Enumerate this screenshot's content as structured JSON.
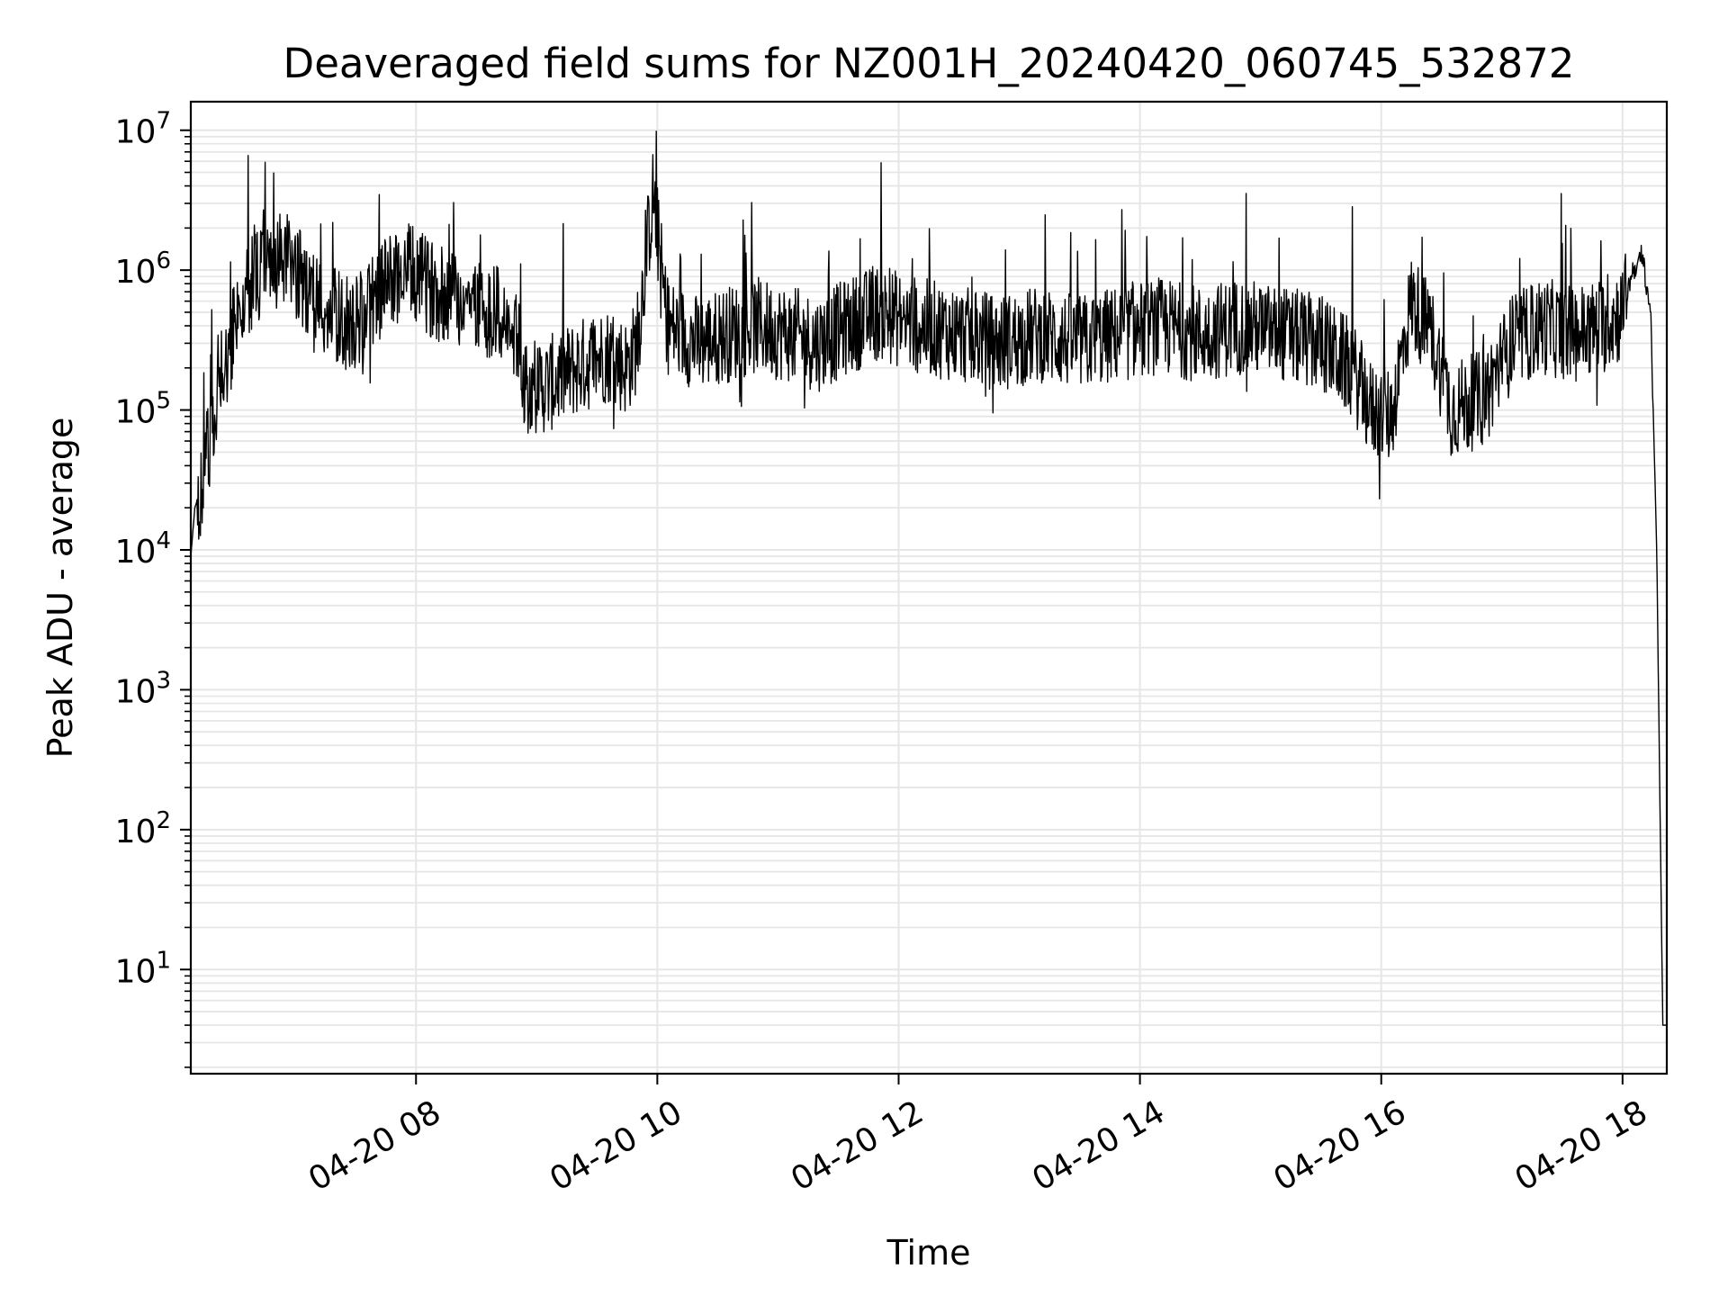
{
  "chart_data": {
    "type": "line",
    "title": "Deaveraged field sums for NZ001H_20240420_060745_532872",
    "xlabel": "Time",
    "ylabel": "Peak ADU - average",
    "x_scale": "time",
    "y_scale": "log",
    "xlim": [
      "2024-04-20 06:08",
      "2024-04-20 18:22"
    ],
    "ylim": [
      1.8,
      16000000
    ],
    "x_ticks": [
      {
        "value": "2024-04-20 08:00",
        "label": "04-20 08"
      },
      {
        "value": "2024-04-20 10:00",
        "label": "04-20 10"
      },
      {
        "value": "2024-04-20 12:00",
        "label": "04-20 12"
      },
      {
        "value": "2024-04-20 14:00",
        "label": "04-20 14"
      },
      {
        "value": "2024-04-20 16:00",
        "label": "04-20 16"
      },
      {
        "value": "2024-04-20 18:00",
        "label": "04-20 18"
      }
    ],
    "y_ticks": [
      {
        "value": 10,
        "base": "10",
        "exp": "1"
      },
      {
        "value": 100,
        "base": "10",
        "exp": "2"
      },
      {
        "value": 1000,
        "base": "10",
        "exp": "3"
      },
      {
        "value": 10000,
        "base": "10",
        "exp": "4"
      },
      {
        "value": 100000,
        "base": "10",
        "exp": "5"
      },
      {
        "value": 1000000,
        "base": "10",
        "exp": "6"
      },
      {
        "value": 10000000,
        "base": "10",
        "exp": "7"
      }
    ],
    "grid": true,
    "minor_grid": true,
    "line_color": "#000000",
    "grid_color": "#e6e6e6",
    "series": [
      {
        "x": [
          "2024-04-20 06:08",
          "2024-04-20 06:10",
          "2024-04-20 06:14",
          "2024-04-20 06:18",
          "2024-04-20 06:22",
          "2024-04-20 06:28",
          "2024-04-20 06:35",
          "2024-04-20 06:45",
          "2024-04-20 06:55",
          "2024-04-20 07:05",
          "2024-04-20 07:15",
          "2024-04-20 07:30",
          "2024-04-20 07:45",
          "2024-04-20 07:55",
          "2024-04-20 08:10",
          "2024-04-20 08:25",
          "2024-04-20 08:40",
          "2024-04-20 08:50",
          "2024-04-20 08:55",
          "2024-04-20 09:05",
          "2024-04-20 09:20",
          "2024-04-20 09:35",
          "2024-04-20 09:45",
          "2024-04-20 09:50",
          "2024-04-20 09:55",
          "2024-04-20 09:58",
          "2024-04-20 10:05",
          "2024-04-20 10:20",
          "2024-04-20 10:35",
          "2024-04-20 10:50",
          "2024-04-20 11:05",
          "2024-04-20 11:20",
          "2024-04-20 11:35",
          "2024-04-20 11:50",
          "2024-04-20 12:10",
          "2024-04-20 12:30",
          "2024-04-20 12:50",
          "2024-04-20 13:10",
          "2024-04-20 13:30",
          "2024-04-20 13:50",
          "2024-04-20 14:10",
          "2024-04-20 14:30",
          "2024-04-20 14:50",
          "2024-04-20 15:10",
          "2024-04-20 15:30",
          "2024-04-20 15:45",
          "2024-04-20 15:55",
          "2024-04-20 16:05",
          "2024-04-20 16:15",
          "2024-04-20 16:25",
          "2024-04-20 16:35",
          "2024-04-20 16:50",
          "2024-04-20 17:05",
          "2024-04-20 17:20",
          "2024-04-20 17:35",
          "2024-04-20 17:50",
          "2024-04-20 18:00",
          "2024-04-20 18:05",
          "2024-04-20 18:10",
          "2024-04-20 18:14",
          "2024-04-20 18:17",
          "2024-04-20 18:20",
          "2024-04-20 18:22"
        ],
        "y": [
          9000,
          20000,
          30000,
          70000,
          150000,
          300000,
          700000,
          1000000,
          1200000,
          800000,
          500000,
          400000,
          800000,
          1000000,
          700000,
          600000,
          500000,
          300000,
          150000,
          150000,
          200000,
          250000,
          200000,
          300000,
          1500000,
          3500000,
          400000,
          300000,
          350000,
          400000,
          350000,
          300000,
          400000,
          500000,
          400000,
          350000,
          300000,
          350000,
          300000,
          350000,
          400000,
          350000,
          400000,
          350000,
          300000,
          200000,
          100000,
          90000,
          600000,
          350000,
          100000,
          120000,
          300000,
          400000,
          350000,
          400000,
          500000,
          1000000,
          1200000,
          500000,
          10000,
          4,
          4
        ]
      }
    ]
  }
}
